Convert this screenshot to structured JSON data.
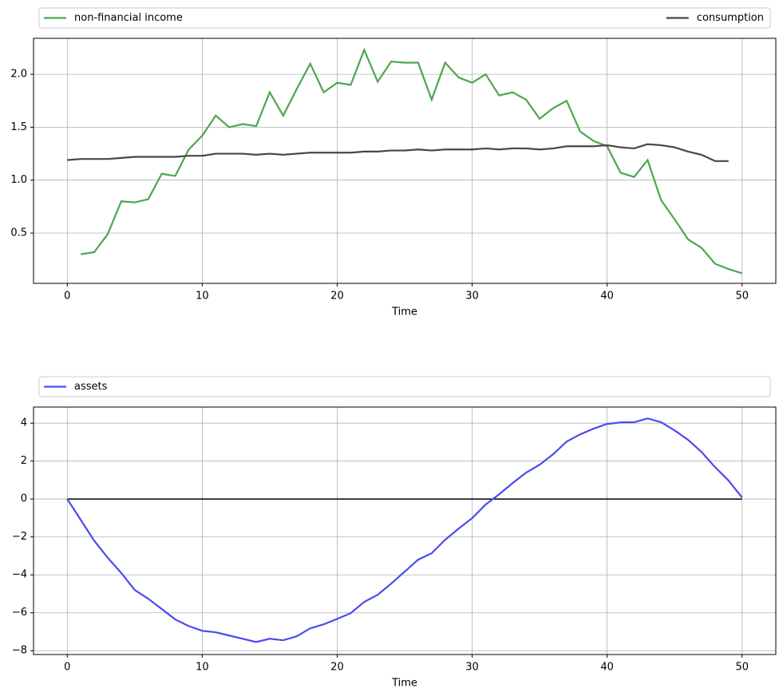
{
  "chart_data": [
    {
      "type": "line",
      "xlabel": "Time",
      "grid": true,
      "legend": "top",
      "x": [
        0,
        1,
        2,
        3,
        4,
        5,
        6,
        7,
        8,
        9,
        10,
        11,
        12,
        13,
        14,
        15,
        16,
        17,
        18,
        19,
        20,
        21,
        22,
        23,
        24,
        25,
        26,
        27,
        28,
        29,
        30,
        31,
        32,
        33,
        34,
        35,
        36,
        37,
        38,
        39,
        40,
        41,
        42,
        43,
        44,
        45,
        46,
        47,
        48,
        49,
        50
      ],
      "xlim": [
        -2.5,
        52.5
      ],
      "xticks": [
        0,
        10,
        20,
        30,
        40,
        50
      ],
      "ylim": [
        0.025,
        2.34
      ],
      "yticks": [
        0.5,
        {
          "value": 1.0,
          "label": "1.0"
        },
        1.5,
        {
          "value": 2.0,
          "label": "2.0"
        }
      ],
      "series": [
        {
          "name": "non-financial income",
          "color": "#4da64d",
          "values": [
            null,
            0.3,
            0.32,
            0.49,
            0.8,
            0.79,
            0.82,
            1.06,
            1.04,
            1.29,
            1.42,
            1.61,
            1.5,
            1.53,
            1.51,
            1.83,
            1.61,
            1.86,
            2.1,
            1.83,
            1.92,
            1.9,
            2.23,
            1.93,
            2.12,
            2.11,
            2.11,
            1.76,
            2.11,
            1.97,
            1.92,
            2.0,
            1.8,
            1.83,
            1.76,
            1.58,
            1.68,
            1.75,
            1.46,
            1.37,
            1.32,
            1.07,
            1.03,
            1.19,
            0.81,
            0.63,
            0.44,
            0.36,
            0.21,
            0.16,
            0.12
          ]
        },
        {
          "name": "consumption",
          "color": "#474747",
          "values": [
            1.19,
            1.2,
            1.2,
            1.2,
            1.21,
            1.22,
            1.22,
            1.22,
            1.22,
            1.23,
            1.23,
            1.25,
            1.25,
            1.25,
            1.24,
            1.25,
            1.24,
            1.25,
            1.26,
            1.26,
            1.26,
            1.26,
            1.27,
            1.27,
            1.28,
            1.28,
            1.29,
            1.28,
            1.29,
            1.29,
            1.29,
            1.3,
            1.29,
            1.3,
            1.3,
            1.29,
            1.3,
            1.32,
            1.32,
            1.32,
            1.33,
            1.31,
            1.3,
            1.34,
            1.33,
            1.31,
            1.27,
            1.24,
            1.18,
            1.18,
            null
          ]
        }
      ]
    },
    {
      "type": "line",
      "xlabel": "Time",
      "grid": true,
      "legend": "top",
      "x": [
        0,
        1,
        2,
        3,
        4,
        5,
        6,
        7,
        8,
        9,
        10,
        11,
        12,
        13,
        14,
        15,
        16,
        17,
        18,
        19,
        20,
        21,
        22,
        23,
        24,
        25,
        26,
        27,
        28,
        29,
        30,
        31,
        32,
        33,
        34,
        35,
        36,
        37,
        38,
        39,
        40,
        41,
        42,
        43,
        44,
        45,
        46,
        47,
        48,
        49,
        50
      ],
      "xlim": [
        -2.5,
        52.5
      ],
      "xticks": [
        0,
        10,
        20,
        30,
        40,
        50
      ],
      "ylim": [
        -8.2,
        4.85
      ],
      "yticks": [
        {
          "value": -8,
          "label": "−8"
        },
        {
          "value": -6,
          "label": "−6"
        },
        {
          "value": -4,
          "label": "−4"
        },
        {
          "value": -2,
          "label": "−2"
        },
        0,
        2,
        4
      ],
      "reference_line": {
        "y": 0,
        "color": "#000000"
      },
      "series": [
        {
          "name": "assets",
          "color": "#4b4bef",
          "values": [
            0,
            -1.1,
            -2.2,
            -3.1,
            -3.9,
            -4.8,
            -5.26,
            -5.8,
            -6.35,
            -6.7,
            -6.95,
            -7.03,
            -7.2,
            -7.37,
            -7.54,
            -7.37,
            -7.45,
            -7.24,
            -6.82,
            -6.61,
            -6.32,
            -6.02,
            -5.43,
            -5.05,
            -4.46,
            -3.83,
            -3.2,
            -2.86,
            -2.15,
            -1.56,
            -1.01,
            -0.29,
            0.25,
            0.84,
            1.39,
            1.81,
            2.36,
            3.03,
            3.41,
            3.71,
            3.96,
            4.04,
            4.05,
            4.25,
            4.05,
            3.62,
            3.12,
            2.48,
            1.68,
            0.97,
            0.08
          ]
        }
      ]
    }
  ]
}
